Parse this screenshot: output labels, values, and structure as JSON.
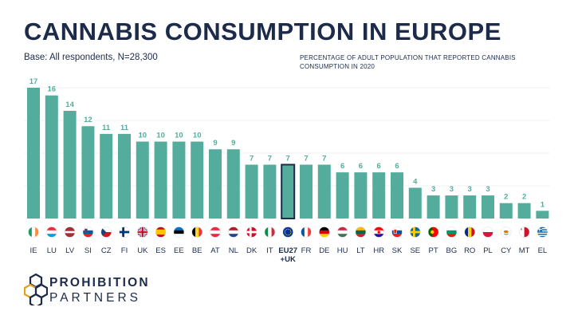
{
  "title": "CANNABIS CONSUMPTION IN EUROPE",
  "subtitle": "Base: All respondents, N=28,300",
  "note": "PERCENTAGE OF ADULT POPULATION THAT REPORTED CANNABIS CONSUMPTION IN 2020",
  "brand": {
    "line1": "PROHIBITION",
    "line2": "PARTNERS"
  },
  "colors": {
    "bar": "#54ad9c",
    "value_label": "#54ad9c",
    "text": "#1c2b4a",
    "highlight_outline": "#1c2b4a",
    "gridline": "#eef3f2"
  },
  "chart_data": {
    "type": "bar",
    "title": "CANNABIS CONSUMPTION IN EUROPE",
    "categories": [
      "IE",
      "LU",
      "LV",
      "SI",
      "CZ",
      "FI",
      "UK",
      "ES",
      "EE",
      "BE",
      "AT",
      "NL",
      "DK",
      "IT",
      "EU27 +UK",
      "FR",
      "DE",
      "HU",
      "LT",
      "HR",
      "SK",
      "SE",
      "PT",
      "BG",
      "RO",
      "PL",
      "CY",
      "MT",
      "EL"
    ],
    "values": [
      17,
      16,
      14,
      12,
      11,
      11,
      10,
      10,
      10,
      10,
      9,
      9,
      7,
      7,
      7,
      7,
      7,
      6,
      6,
      6,
      6,
      4,
      3,
      3,
      3,
      3,
      2,
      2,
      1
    ],
    "highlight": "EU27 +UK",
    "unit": "percent",
    "ylim": [
      0,
      17
    ],
    "grid": true,
    "legend": "none",
    "flag_icons": [
      "ireland-flag-icon",
      "luxembourg-flag-icon",
      "latvia-flag-icon",
      "slovenia-flag-icon",
      "czechia-flag-icon",
      "finland-flag-icon",
      "uk-flag-icon",
      "spain-flag-icon",
      "estonia-flag-icon",
      "belgium-flag-icon",
      "austria-flag-icon",
      "netherlands-flag-icon",
      "denmark-flag-icon",
      "italy-flag-icon",
      "eu-flag-icon",
      "france-flag-icon",
      "germany-flag-icon",
      "hungary-flag-icon",
      "lithuania-flag-icon",
      "croatia-flag-icon",
      "slovakia-flag-icon",
      "sweden-flag-icon",
      "portugal-flag-icon",
      "bulgaria-flag-icon",
      "romania-flag-icon",
      "poland-flag-icon",
      "cyprus-flag-icon",
      "malta-flag-icon",
      "greece-flag-icon"
    ]
  }
}
